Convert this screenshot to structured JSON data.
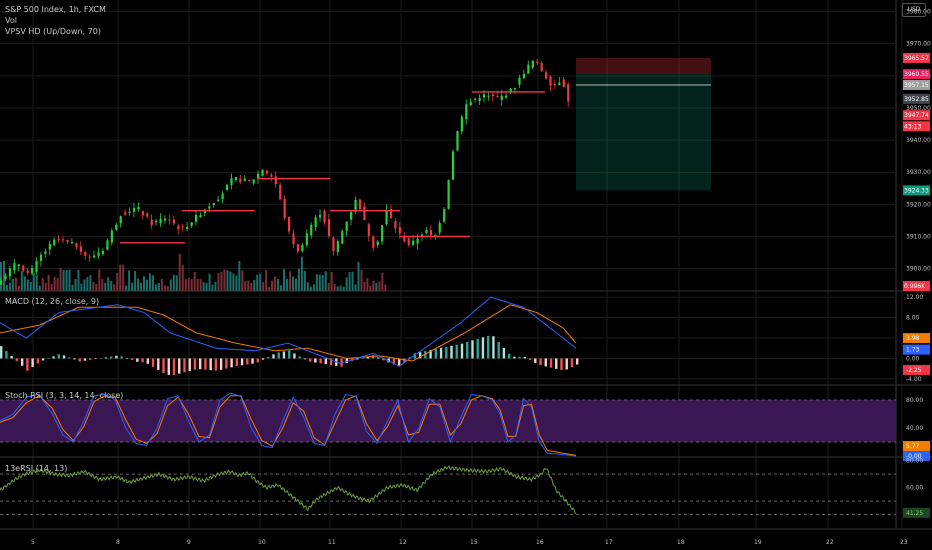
{
  "legends": {
    "symbol": "S&P 500 Index, 1h, FXCM",
    "vol": "Vol",
    "vpsv": "VPSV HD (Up/Down, 70)",
    "macd": "MACD (12, 26, close, 9)",
    "stoch": "Stoch RSI (3, 3, 14, 14, close)",
    "rsi13": "13eRSI (14, 13)",
    "currency": "USD"
  },
  "colors": {
    "up": "#26d23a",
    "down": "#f23645",
    "grid": "#1b1b1b",
    "macd": "#2962ff",
    "signal": "#f57c00",
    "rsi": "#6d9e3f",
    "stochband": "#3a1652"
  },
  "chart_data": [
    {
      "type": "candlestick",
      "name": "price",
      "yticks": [
        3900,
        3910,
        3920,
        3930,
        3940,
        3950,
        3960,
        3970,
        3980
      ],
      "ytick_labels": [
        "3900.00",
        "3910.00",
        "3920.00",
        "3930.00",
        "3940.00",
        "3950.00",
        "3960.00",
        "3970.00",
        "3980.00"
      ],
      "ylim": [
        3893,
        3983
      ],
      "x_labels": [
        "5",
        "8",
        "9",
        "10",
        "11",
        "12",
        "15",
        "16",
        "17",
        "18",
        "19",
        "22",
        "23"
      ],
      "x_dates": [
        "2021-02-05",
        "2021-02-08",
        "2021-02-09",
        "2021-02-10",
        "2021-02-11",
        "2021-02-12",
        "2021-02-15",
        "2021-02-16",
        "2021-02-17",
        "2021-02-18",
        "2021-02-19",
        "2021-02-22",
        "2021-02-23"
      ],
      "price_path": [
        [
          3895.5,
          0
        ],
        [
          3902,
          14
        ],
        [
          3898,
          22
        ],
        [
          3904,
          30
        ],
        [
          3909,
          40
        ],
        [
          3907,
          55
        ],
        [
          3903,
          62
        ],
        [
          3906,
          72
        ],
        [
          3917,
          84
        ],
        [
          3919,
          95
        ],
        [
          3914,
          105
        ],
        [
          3916,
          115
        ],
        [
          3912,
          125
        ],
        [
          3916,
          135
        ],
        [
          3919,
          142
        ],
        [
          3923,
          152
        ],
        [
          3928,
          160
        ],
        [
          3927,
          172
        ],
        [
          3931,
          180
        ],
        [
          3928,
          188
        ],
        [
          3911,
          198
        ],
        [
          3905,
          204
        ],
        [
          3913,
          212
        ],
        [
          3918,
          220
        ],
        [
          3905,
          228
        ],
        [
          3914,
          236
        ],
        [
          3922,
          244
        ],
        [
          3913,
          250
        ],
        [
          3906,
          256
        ],
        [
          3918,
          264
        ],
        [
          3911,
          272
        ],
        [
          3907,
          280
        ],
        [
          3912,
          290
        ],
        [
          3909,
          296
        ],
        [
          3919,
          303
        ],
        [
          3931,
          307
        ],
        [
          3942,
          311
        ],
        [
          3951,
          318
        ],
        [
          3954,
          328
        ],
        [
          3953,
          340
        ],
        [
          3956,
          350
        ],
        [
          3962,
          358
        ],
        [
          3965,
          364
        ],
        [
          3961,
          370
        ],
        [
          3957,
          376
        ],
        [
          3959,
          383
        ],
        [
          3950,
          388
        ]
      ],
      "markers": [
        {
          "label": "3965.57",
          "price": 3965.57,
          "color": "#f23645"
        },
        {
          "label": "3960.55",
          "price": 3960.55,
          "color": "#e91e63"
        },
        {
          "label": "3957.15",
          "price": 3957.15,
          "color": "#9e9e9e"
        },
        {
          "label": "3952.85",
          "price": 3952.85,
          "color": "#434651"
        },
        {
          "label": "3947.74",
          "price": 3947.74,
          "color": "#f23645"
        },
        {
          "label": "43:13",
          "price": 3944.3,
          "color": "#f23645"
        },
        {
          "label": "3924.33",
          "price": 3924.33,
          "color": "#089981"
        }
      ],
      "position": {
        "entry": 3960.55,
        "stop": 3965.57,
        "target": 3924.33
      },
      "volume_label": "0.996K"
    },
    {
      "type": "macd",
      "name": "MACD (12, 26, close, 9)",
      "yticks": [
        12,
        8,
        4,
        0,
        -4
      ],
      "ytick_labels": [
        "12.00",
        "8.00",
        "4.00",
        "0.00",
        "-4.00"
      ],
      "ylim": [
        -5,
        13
      ],
      "macd_path": [
        [
          7,
          0
        ],
        [
          4,
          20
        ],
        [
          9,
          45
        ],
        [
          10.5,
          90
        ],
        [
          9,
          110
        ],
        [
          5,
          130
        ],
        [
          2,
          165
        ],
        [
          1.5,
          195
        ],
        [
          3,
          220
        ],
        [
          -1,
          260
        ],
        [
          1,
          285
        ],
        [
          -1.5,
          305
        ],
        [
          7,
          352
        ],
        [
          12,
          375
        ],
        [
          10,
          400
        ],
        [
          6,
          420
        ],
        [
          2,
          440
        ]
      ],
      "signal_path": [
        [
          5,
          0
        ],
        [
          6.5,
          30
        ],
        [
          10,
          60
        ],
        [
          10,
          105
        ],
        [
          8.5,
          125
        ],
        [
          5,
          150
        ],
        [
          3,
          180
        ],
        [
          1.5,
          210
        ],
        [
          2,
          235
        ],
        [
          0,
          265
        ],
        [
          0.5,
          290
        ],
        [
          -0.5,
          315
        ],
        [
          5,
          355
        ],
        [
          10.5,
          390
        ],
        [
          9,
          410
        ],
        [
          6,
          430
        ],
        [
          3,
          440
        ]
      ],
      "markers": [
        {
          "label": "3.98",
          "value": 3.98,
          "color": "#f57c00"
        },
        {
          "label": "1.73",
          "value": 1.73,
          "color": "#2962ff"
        },
        {
          "label": "-2.25",
          "value": -2.25,
          "color": "#f23645"
        }
      ]
    },
    {
      "type": "stochastic_rsi",
      "name": "Stoch RSI (3, 3, 14, 14, close)",
      "yticks": [
        80,
        40
      ],
      "ytick_labels": [
        "80.00",
        "40.00"
      ],
      "ylim": [
        0,
        100
      ],
      "band": [
        20,
        80
      ],
      "k_path": [
        [
          50,
          0
        ],
        [
          60,
          10
        ],
        [
          84,
          20
        ],
        [
          88,
          30
        ],
        [
          60,
          40
        ],
        [
          30,
          48
        ],
        [
          20,
          56
        ],
        [
          50,
          64
        ],
        [
          86,
          72
        ],
        [
          88,
          80
        ],
        [
          80,
          88
        ],
        [
          40,
          96
        ],
        [
          18,
          104
        ],
        [
          15,
          112
        ],
        [
          40,
          120
        ],
        [
          82,
          128
        ],
        [
          86,
          136
        ],
        [
          50,
          144
        ],
        [
          20,
          152
        ],
        [
          30,
          160
        ],
        [
          80,
          168
        ],
        [
          90,
          176
        ],
        [
          85,
          184
        ],
        [
          40,
          192
        ],
        [
          15,
          200
        ],
        [
          12,
          208
        ],
        [
          50,
          216
        ],
        [
          84,
          224
        ],
        [
          55,
          232
        ],
        [
          18,
          240
        ],
        [
          15,
          248
        ],
        [
          60,
          256
        ],
        [
          88,
          264
        ],
        [
          85,
          272
        ],
        [
          35,
          280
        ],
        [
          18,
          288
        ],
        [
          50,
          296
        ],
        [
          80,
          304
        ],
        [
          20,
          312
        ],
        [
          40,
          320
        ],
        [
          82,
          328
        ],
        [
          70,
          336
        ],
        [
          20,
          344
        ],
        [
          55,
          352
        ],
        [
          88,
          360
        ],
        [
          86,
          368
        ],
        [
          80,
          376
        ],
        [
          60,
          382
        ],
        [
          20,
          388
        ],
        [
          30,
          394
        ],
        [
          82,
          400
        ],
        [
          70,
          406
        ],
        [
          20,
          412
        ],
        [
          4,
          418
        ],
        [
          2,
          430
        ],
        [
          0,
          440
        ]
      ],
      "d_path": [
        [
          48,
          0
        ],
        [
          55,
          10
        ],
        [
          76,
          20
        ],
        [
          86,
          30
        ],
        [
          68,
          40
        ],
        [
          38,
          48
        ],
        [
          22,
          56
        ],
        [
          42,
          64
        ],
        [
          78,
          72
        ],
        [
          86,
          80
        ],
        [
          84,
          88
        ],
        [
          52,
          96
        ],
        [
          24,
          104
        ],
        [
          18,
          112
        ],
        [
          32,
          120
        ],
        [
          72,
          128
        ],
        [
          84,
          136
        ],
        [
          60,
          144
        ],
        [
          28,
          152
        ],
        [
          26,
          160
        ],
        [
          70,
          168
        ],
        [
          86,
          176
        ],
        [
          86,
          184
        ],
        [
          52,
          192
        ],
        [
          22,
          200
        ],
        [
          14,
          208
        ],
        [
          40,
          216
        ],
        [
          76,
          224
        ],
        [
          64,
          232
        ],
        [
          26,
          240
        ],
        [
          16,
          248
        ],
        [
          48,
          256
        ],
        [
          80,
          264
        ],
        [
          86,
          272
        ],
        [
          46,
          280
        ],
        [
          22,
          288
        ],
        [
          42,
          296
        ],
        [
          72,
          304
        ],
        [
          30,
          312
        ],
        [
          34,
          320
        ],
        [
          74,
          328
        ],
        [
          74,
          336
        ],
        [
          30,
          344
        ],
        [
          46,
          352
        ],
        [
          80,
          360
        ],
        [
          86,
          368
        ],
        [
          82,
          376
        ],
        [
          66,
          382
        ],
        [
          28,
          388
        ],
        [
          28,
          394
        ],
        [
          72,
          400
        ],
        [
          74,
          406
        ],
        [
          30,
          412
        ],
        [
          8,
          418
        ],
        [
          4,
          430
        ],
        [
          1,
          440
        ]
      ],
      "markers": [
        {
          "label": "5.77",
          "value": 5.77,
          "color": "#f57c00"
        },
        {
          "label": "-0.00",
          "value": 0,
          "color": "#2962ff"
        }
      ]
    },
    {
      "type": "rsi",
      "name": "13eRSI (14, 13)",
      "yticks": [
        80,
        60
      ],
      "ytick_labels": [
        "80.00",
        "60.00"
      ],
      "ylim": [
        30,
        82
      ],
      "dashed_levels": [
        70,
        50,
        40
      ],
      "value_path": [
        [
          58,
          0
        ],
        [
          66,
          15
        ],
        [
          70,
          25
        ],
        [
          73,
          40
        ],
        [
          70,
          55
        ],
        [
          69,
          70
        ],
        [
          72,
          85
        ],
        [
          66,
          100
        ],
        [
          68,
          118
        ],
        [
          64,
          130
        ],
        [
          67,
          145
        ],
        [
          70,
          160
        ],
        [
          66,
          175
        ],
        [
          68,
          190
        ],
        [
          65,
          205
        ],
        [
          70,
          220
        ],
        [
          72,
          232
        ],
        [
          69,
          240
        ],
        [
          71,
          250
        ],
        [
          65,
          258
        ],
        [
          60,
          268
        ],
        [
          62,
          280
        ],
        [
          50,
          300
        ],
        [
          44,
          310
        ],
        [
          52,
          320
        ],
        [
          60,
          340
        ],
        [
          55,
          352
        ],
        [
          52,
          362
        ],
        [
          50,
          372
        ],
        [
          60,
          390
        ],
        [
          62,
          405
        ],
        [
          58,
          420
        ],
        [
          70,
          435
        ],
        [
          75,
          450
        ],
        [
          73,
          470
        ],
        [
          72,
          490
        ],
        [
          74,
          505
        ],
        [
          68,
          520
        ],
        [
          66,
          535
        ],
        [
          70,
          545
        ],
        [
          75,
          550
        ],
        [
          58,
          560
        ],
        [
          50,
          570
        ],
        [
          41.25,
          580
        ]
      ],
      "markers": [
        {
          "label": "41.25",
          "value": 41.25,
          "color": "#4caf50"
        }
      ]
    }
  ]
}
